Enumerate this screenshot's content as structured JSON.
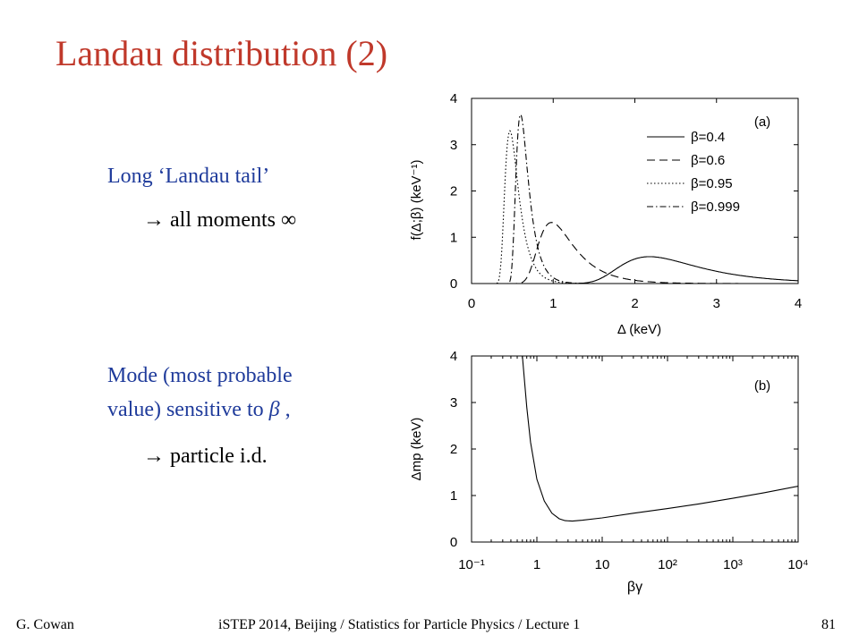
{
  "slide": {
    "title": "Landau distribution  (2)",
    "bullet1_line1": "Long ‘Landau tail’",
    "bullet1_line2": "→  all moments  ∞",
    "bullet2_line1": "Mode (most probable",
    "bullet2_line2": "value) sensitive to",
    "bullet2_beta": "β",
    "bullet2_comma": " ,",
    "bullet2_line3": "→  particle i.d.",
    "footer_left": "G. Cowan",
    "footer_center": "iSTEP 2014, Beijing / Statistics for Particle Physics / Lecture 1",
    "footer_right": "81"
  },
  "colors": {
    "title": "#c0392b",
    "text_blue": "#1f3b9b"
  },
  "chart_data": [
    {
      "type": "line",
      "panel_label": "(a)",
      "xlabel": "Δ  (keV)",
      "ylabel": "f(Δ;β)   (keV⁻¹)",
      "xlim": [
        0,
        4
      ],
      "ylim": [
        0,
        4
      ],
      "xticks": [
        "0",
        "1",
        "2",
        "3",
        "4"
      ],
      "yticks": [
        "0",
        "1",
        "2",
        "3",
        "4"
      ],
      "legend_position": "top-right",
      "series": [
        {
          "name": "β=0.4",
          "style": "solid",
          "mode": 2.18,
          "peak": 0.58,
          "width": 0.33
        },
        {
          "name": "β=0.6",
          "style": "dashed",
          "mode": 0.98,
          "peak": 1.32,
          "width": 0.148
        },
        {
          "name": "β=0.95",
          "style": "dotted",
          "mode": 0.47,
          "peak": 3.3,
          "width": 0.057
        },
        {
          "name": "β=0.999",
          "style": "dashdot",
          "mode": 0.6,
          "peak": 3.65,
          "width": 0.052
        }
      ]
    },
    {
      "type": "line",
      "panel_label": "(b)",
      "xlabel": "βγ",
      "ylabel": "Δmp  (keV)",
      "xscale": "log",
      "xlim": [
        0.1,
        10000
      ],
      "ylim": [
        0,
        4
      ],
      "xticks": [
        "10⁻¹",
        "1",
        "10",
        "10²",
        "10³",
        "10⁴"
      ],
      "yticks": [
        "0",
        "1",
        "2",
        "3",
        "4"
      ],
      "series": [
        {
          "name": "",
          "style": "solid",
          "x": [
            0.6,
            0.7,
            0.8,
            1.0,
            1.3,
            1.7,
            2.2,
            2.7,
            3.5,
            5,
            10,
            30,
            100,
            300,
            1000,
            3000,
            10000
          ],
          "y": [
            4.0,
            2.9,
            2.15,
            1.35,
            0.88,
            0.62,
            0.5,
            0.46,
            0.45,
            0.47,
            0.52,
            0.62,
            0.72,
            0.82,
            0.94,
            1.06,
            1.2
          ]
        }
      ]
    }
  ]
}
